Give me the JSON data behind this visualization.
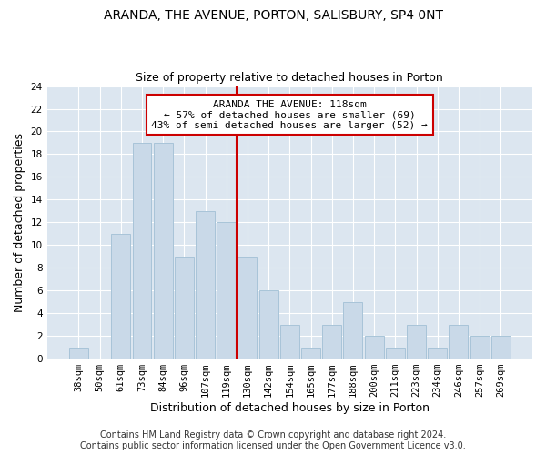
{
  "title1": "ARANDA, THE AVENUE, PORTON, SALISBURY, SP4 0NT",
  "title2": "Size of property relative to detached houses in Porton",
  "xlabel": "Distribution of detached houses by size in Porton",
  "ylabel": "Number of detached properties",
  "categories": [
    "38sqm",
    "50sqm",
    "61sqm",
    "73sqm",
    "84sqm",
    "96sqm",
    "107sqm",
    "119sqm",
    "130sqm",
    "142sqm",
    "154sqm",
    "165sqm",
    "177sqm",
    "188sqm",
    "200sqm",
    "211sqm",
    "223sqm",
    "234sqm",
    "246sqm",
    "257sqm",
    "269sqm"
  ],
  "values": [
    1,
    0,
    11,
    19,
    19,
    9,
    13,
    12,
    9,
    6,
    3,
    1,
    3,
    5,
    2,
    1,
    3,
    1,
    3,
    2,
    2
  ],
  "bar_color": "#c9d9e8",
  "bar_edgecolor": "#a8c4d8",
  "vline_color": "#cc0000",
  "box_edgecolor": "#cc0000",
  "annotation_line1": "ARANDA THE AVENUE: 118sqm",
  "annotation_line2": "← 57% of detached houses are smaller (69)",
  "annotation_line3": "43% of semi-detached houses are larger (52) →",
  "ylim": [
    0,
    24
  ],
  "yticks": [
    0,
    2,
    4,
    6,
    8,
    10,
    12,
    14,
    16,
    18,
    20,
    22,
    24
  ],
  "footer": "Contains HM Land Registry data © Crown copyright and database right 2024.\nContains public sector information licensed under the Open Government Licence v3.0.",
  "plot_background": "#dce6f0",
  "grid_color": "#ffffff",
  "title1_fontsize": 10,
  "title2_fontsize": 9,
  "xlabel_fontsize": 9,
  "ylabel_fontsize": 9,
  "tick_fontsize": 7.5,
  "annot_fontsize": 8,
  "footer_fontsize": 7
}
